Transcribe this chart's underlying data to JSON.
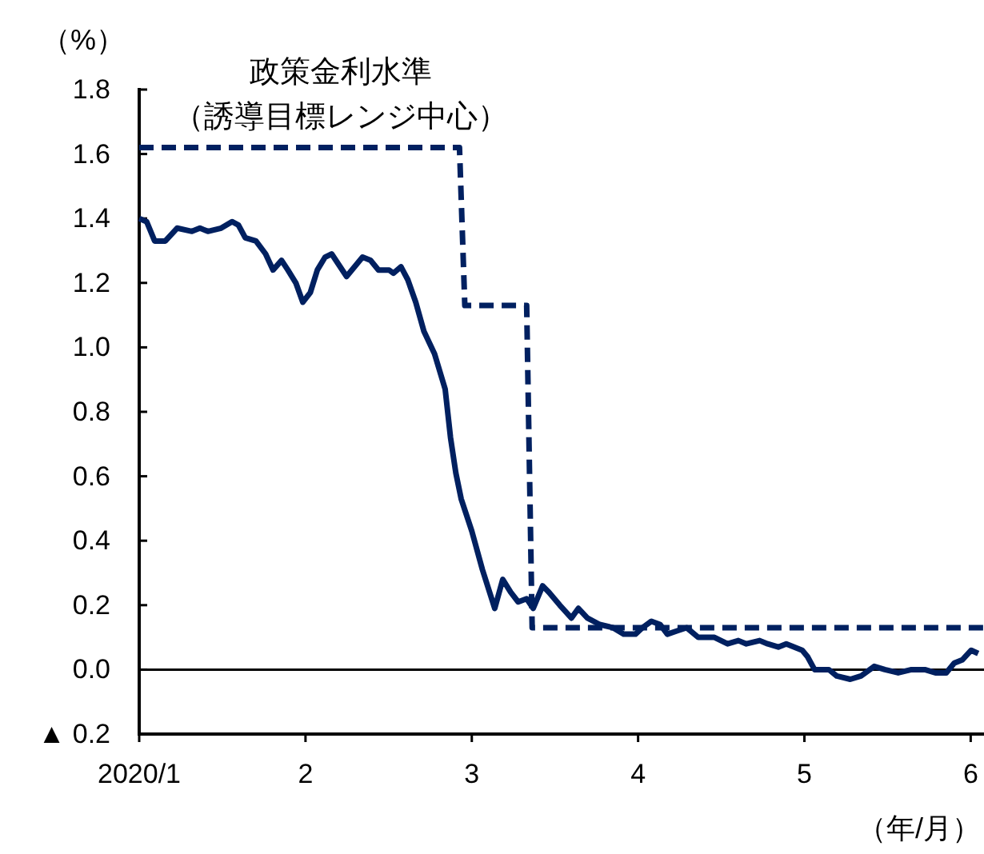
{
  "chart_data": {
    "type": "line",
    "ylabel": "（%）",
    "xlabel": "（年/月）",
    "series": [
      {
        "color": "#002060",
        "line_style": "solid",
        "x": [
          1.0,
          1.045,
          1.093,
          1.157,
          1.228,
          1.317,
          1.365,
          1.413,
          1.493,
          1.558,
          1.596,
          1.638,
          1.702,
          1.76,
          1.805,
          1.856,
          1.894,
          1.942,
          1.984,
          2.029,
          2.071,
          2.118,
          2.157,
          2.247,
          2.343,
          2.391,
          2.439,
          2.503,
          2.529,
          2.574,
          2.615,
          2.663,
          2.712,
          2.776,
          2.84,
          2.872,
          2.904,
          2.936,
          3.0,
          3.064,
          3.138,
          3.186,
          3.234,
          3.279,
          3.33,
          3.369,
          3.426,
          3.464,
          3.529,
          3.599,
          3.641,
          3.695,
          3.769,
          3.849,
          3.913,
          3.984,
          4.026,
          4.08,
          4.132,
          4.176,
          4.234,
          4.292,
          4.362,
          4.459,
          4.538,
          4.603,
          4.651,
          4.731,
          4.779,
          4.843,
          4.891,
          4.987,
          5.019,
          5.061,
          5.147,
          5.195,
          5.276,
          5.34,
          5.42,
          5.484,
          5.564,
          5.644,
          5.724,
          5.788,
          5.853,
          5.901,
          5.949,
          6.003,
          6.045
        ],
        "values": [
          1.4,
          1.39,
          1.33,
          1.33,
          1.37,
          1.36,
          1.37,
          1.36,
          1.37,
          1.39,
          1.38,
          1.34,
          1.33,
          1.29,
          1.24,
          1.27,
          1.24,
          1.2,
          1.14,
          1.17,
          1.24,
          1.28,
          1.29,
          1.22,
          1.28,
          1.27,
          1.24,
          1.24,
          1.23,
          1.25,
          1.21,
          1.14,
          1.05,
          0.98,
          0.87,
          0.72,
          0.61,
          0.53,
          0.43,
          0.31,
          0.19,
          0.28,
          0.24,
          0.21,
          0.22,
          0.19,
          0.26,
          0.24,
          0.2,
          0.16,
          0.19,
          0.16,
          0.14,
          0.13,
          0.11,
          0.11,
          0.13,
          0.15,
          0.14,
          0.11,
          0.12,
          0.13,
          0.1,
          0.1,
          0.08,
          0.09,
          0.08,
          0.09,
          0.08,
          0.07,
          0.08,
          0.06,
          0.04,
          0.0,
          0.0,
          -0.02,
          -0.03,
          -0.02,
          0.01,
          0.0,
          -0.01,
          0.0,
          0.0,
          -0.01,
          -0.01,
          0.02,
          0.03,
          0.06,
          0.05
        ]
      },
      {
        "name": "政策金利水準（誘導目標レンジ中心）",
        "color": "#002060",
        "line_style": "dashed",
        "x": [
          1.0,
          2.926,
          2.958,
          3.33,
          3.363,
          6.08
        ],
        "values": [
          1.62,
          1.62,
          1.13,
          1.13,
          0.13,
          0.13
        ]
      }
    ],
    "xlim": [
      1,
      6.08
    ],
    "ylim": [
      -0.2,
      1.8
    ],
    "xticks": [
      {
        "value": 1,
        "label": "2020/1"
      },
      2,
      3,
      4,
      5,
      6
    ],
    "yticks": [
      {
        "value": -0.2,
        "label": "▲ 0.2"
      },
      {
        "value": 0,
        "label": "0.0"
      },
      0.2,
      0.4,
      0.6,
      0.8,
      {
        "value": 1,
        "label": "1.0"
      },
      1.2,
      1.4,
      1.6,
      1.8
    ],
    "ref_lines": [
      {
        "axis": "y",
        "value": 0,
        "color": "#000000"
      }
    ]
  }
}
